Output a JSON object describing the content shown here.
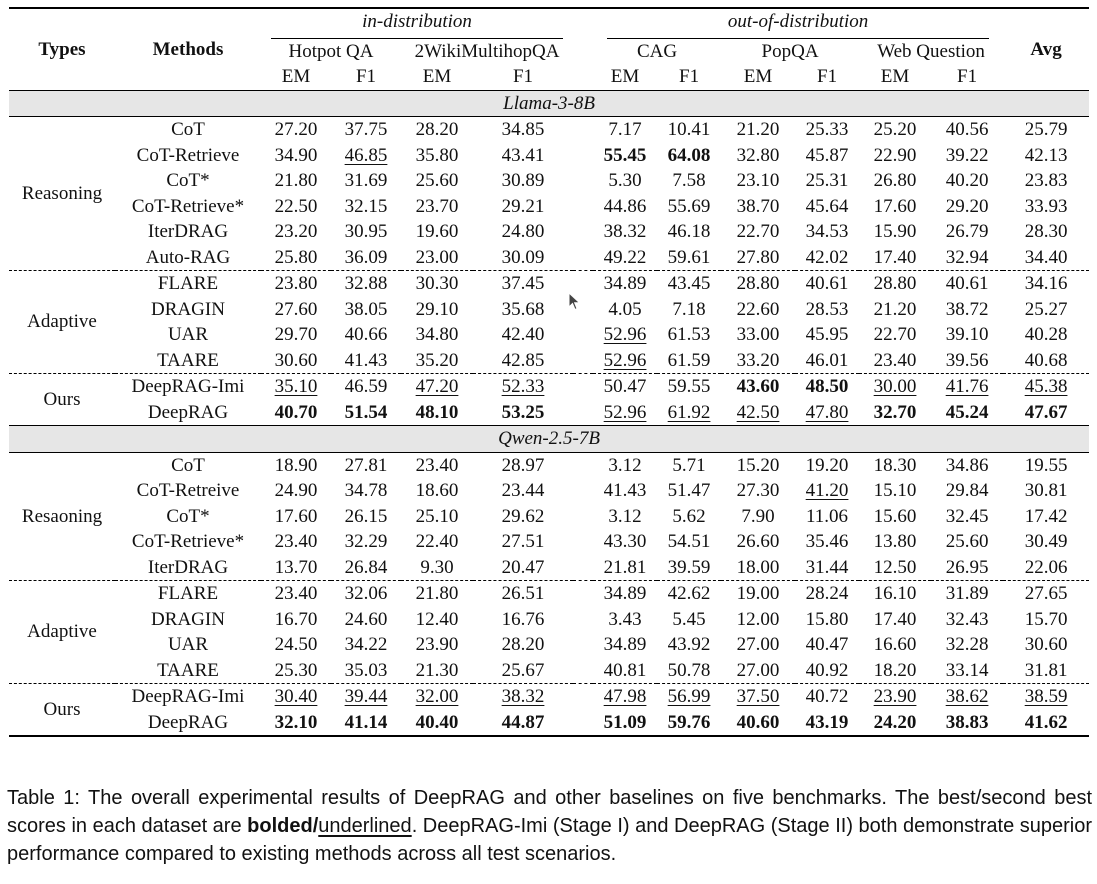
{
  "header": {
    "types": "Types",
    "methods": "Methods",
    "in_distribution": "in-distribution",
    "out_of_distribution": "out-of-distribution",
    "avg": "Avg",
    "datasets": [
      "Hotpot QA",
      "2WikiMultihopQA",
      "CAG",
      "PopQA",
      "Web Question"
    ],
    "metrics": [
      "EM",
      "F1",
      "EM",
      "F1",
      "EM",
      "F1",
      "EM",
      "F1",
      "EM",
      "F1"
    ]
  },
  "sections": [
    {
      "model": "Llama-3-8B",
      "groups": [
        {
          "type": "Reasoning",
          "rows": [
            {
              "method": "CoT",
              "values": [
                "27.20",
                "37.75",
                "28.20",
                "34.85",
                "7.17",
                "10.41",
                "21.20",
                "25.33",
                "25.20",
                "40.56",
                "25.79"
              ],
              "bold": [],
              "underline": []
            },
            {
              "method": "CoT-Retrieve",
              "values": [
                "34.90",
                "46.85",
                "35.80",
                "43.41",
                "55.45",
                "64.08",
                "32.80",
                "45.87",
                "22.90",
                "39.22",
                "42.13"
              ],
              "bold": [
                4,
                5
              ],
              "underline": [
                1
              ]
            },
            {
              "method": "CoT*",
              "values": [
                "21.80",
                "31.69",
                "25.60",
                "30.89",
                "5.30",
                "7.58",
                "23.10",
                "25.31",
                "26.80",
                "40.20",
                "23.83"
              ],
              "bold": [],
              "underline": []
            },
            {
              "method": "CoT-Retrieve*",
              "values": [
                "22.50",
                "32.15",
                "23.70",
                "29.21",
                "44.86",
                "55.69",
                "38.70",
                "45.64",
                "17.60",
                "29.20",
                "33.93"
              ],
              "bold": [],
              "underline": []
            },
            {
              "method": "IterDRAG",
              "values": [
                "23.20",
                "30.95",
                "19.60",
                "24.80",
                "38.32",
                "46.18",
                "22.70",
                "34.53",
                "15.90",
                "26.79",
                "28.30"
              ],
              "bold": [],
              "underline": []
            },
            {
              "method": "Auto-RAG",
              "values": [
                "25.80",
                "36.09",
                "23.00",
                "30.09",
                "49.22",
                "59.61",
                "27.80",
                "42.02",
                "17.40",
                "32.94",
                "34.40"
              ],
              "bold": [],
              "underline": []
            }
          ]
        },
        {
          "type": "Adaptive",
          "rows": [
            {
              "method": "FLARE",
              "values": [
                "23.80",
                "32.88",
                "30.30",
                "37.45",
                "34.89",
                "43.45",
                "28.80",
                "40.61",
                "28.80",
                "40.61",
                "34.16"
              ],
              "bold": [],
              "underline": []
            },
            {
              "method": "DRAGIN",
              "values": [
                "27.60",
                "38.05",
                "29.10",
                "35.68",
                "4.05",
                "7.18",
                "22.60",
                "28.53",
                "21.20",
                "38.72",
                "25.27"
              ],
              "bold": [],
              "underline": []
            },
            {
              "method": "UAR",
              "values": [
                "29.70",
                "40.66",
                "34.80",
                "42.40",
                "52.96",
                "61.53",
                "33.00",
                "45.95",
                "22.70",
                "39.10",
                "40.28"
              ],
              "bold": [],
              "underline": [
                4
              ]
            },
            {
              "method": "TAARE",
              "values": [
                "30.60",
                "41.43",
                "35.20",
                "42.85",
                "52.96",
                "61.59",
                "33.20",
                "46.01",
                "23.40",
                "39.56",
                "40.68"
              ],
              "bold": [],
              "underline": [
                4
              ]
            }
          ]
        },
        {
          "type": "Ours",
          "rows": [
            {
              "method": "DeepRAG-Imi",
              "values": [
                "35.10",
                "46.59",
                "47.20",
                "52.33",
                "50.47",
                "59.55",
                "43.60",
                "48.50",
                "30.00",
                "41.76",
                "45.38"
              ],
              "bold": [
                6,
                7
              ],
              "underline": [
                0,
                2,
                3,
                8,
                9,
                10
              ]
            },
            {
              "method": "DeepRAG",
              "values": [
                "40.70",
                "51.54",
                "48.10",
                "53.25",
                "52.96",
                "61.92",
                "42.50",
                "47.80",
                "32.70",
                "45.24",
                "47.67"
              ],
              "bold": [
                0,
                1,
                2,
                3,
                8,
                9,
                10
              ],
              "underline": [
                4,
                5,
                6,
                7
              ]
            }
          ]
        }
      ]
    },
    {
      "model": "Qwen-2.5-7B",
      "groups": [
        {
          "type": "Resaoning",
          "rows": [
            {
              "method": "CoT",
              "values": [
                "18.90",
                "27.81",
                "23.40",
                "28.97",
                "3.12",
                "5.71",
                "15.20",
                "19.20",
                "18.30",
                "34.86",
                "19.55"
              ],
              "bold": [],
              "underline": []
            },
            {
              "method": "CoT-Retreive",
              "values": [
                "24.90",
                "34.78",
                "18.60",
                "23.44",
                "41.43",
                "51.47",
                "27.30",
                "41.20",
                "15.10",
                "29.84",
                "30.81"
              ],
              "bold": [],
              "underline": [
                7
              ]
            },
            {
              "method": "CoT*",
              "values": [
                "17.60",
                "26.15",
                "25.10",
                "29.62",
                "3.12",
                "5.62",
                "7.90",
                "11.06",
                "15.60",
                "32.45",
                "17.42"
              ],
              "bold": [],
              "underline": []
            },
            {
              "method": "CoT-Retrieve*",
              "values": [
                "23.40",
                "32.29",
                "22.40",
                "27.51",
                "43.30",
                "54.51",
                "26.60",
                "35.46",
                "13.80",
                "25.60",
                "30.49"
              ],
              "bold": [],
              "underline": []
            },
            {
              "method": "IterDRAG",
              "values": [
                "13.70",
                "26.84",
                "9.30",
                "20.47",
                "21.81",
                "39.59",
                "18.00",
                "31.44",
                "12.50",
                "26.95",
                "22.06"
              ],
              "bold": [],
              "underline": []
            }
          ]
        },
        {
          "type": "Adaptive",
          "rows": [
            {
              "method": "FLARE",
              "values": [
                "23.40",
                "32.06",
                "21.80",
                "26.51",
                "34.89",
                "42.62",
                "19.00",
                "28.24",
                "16.10",
                "31.89",
                "27.65"
              ],
              "bold": [],
              "underline": []
            },
            {
              "method": "DRAGIN",
              "values": [
                "16.70",
                "24.60",
                "12.40",
                "16.76",
                "3.43",
                "5.45",
                "12.00",
                "15.80",
                "17.40",
                "32.43",
                "15.70"
              ],
              "bold": [],
              "underline": []
            },
            {
              "method": "UAR",
              "values": [
                "24.50",
                "34.22",
                "23.90",
                "28.20",
                "34.89",
                "43.92",
                "27.00",
                "40.47",
                "16.60",
                "32.28",
                "30.60"
              ],
              "bold": [],
              "underline": []
            },
            {
              "method": "TAARE",
              "values": [
                "25.30",
                "35.03",
                "21.30",
                "25.67",
                "40.81",
                "50.78",
                "27.00",
                "40.92",
                "18.20",
                "33.14",
                "31.81"
              ],
              "bold": [],
              "underline": []
            }
          ]
        },
        {
          "type": "Ours",
          "rows": [
            {
              "method": "DeepRAG-Imi",
              "values": [
                "30.40",
                "39.44",
                "32.00",
                "38.32",
                "47.98",
                "56.99",
                "37.50",
                "40.72",
                "23.90",
                "38.62",
                "38.59"
              ],
              "bold": [],
              "underline": [
                0,
                1,
                2,
                3,
                4,
                5,
                6,
                8,
                9,
                10
              ]
            },
            {
              "method": "DeepRAG",
              "values": [
                "32.10",
                "41.14",
                "40.40",
                "44.87",
                "51.09",
                "59.76",
                "40.60",
                "43.19",
                "24.20",
                "38.83",
                "41.62"
              ],
              "bold": [
                0,
                1,
                2,
                3,
                4,
                5,
                6,
                7,
                8,
                9,
                10
              ],
              "underline": []
            }
          ]
        }
      ]
    }
  ],
  "caption": {
    "prefix": "Table 1: The overall experimental results of DeepRAG and other baselines on five benchmarks. The best/second best scores in each dataset are ",
    "bolded": "bolded",
    "slash": "/",
    "underlined": "underlined",
    "suffix": ". DeepRAG-Imi (Stage I) and DeepRAG (Stage II) both demonstrate superior performance compared to existing methods across all test scenarios."
  }
}
